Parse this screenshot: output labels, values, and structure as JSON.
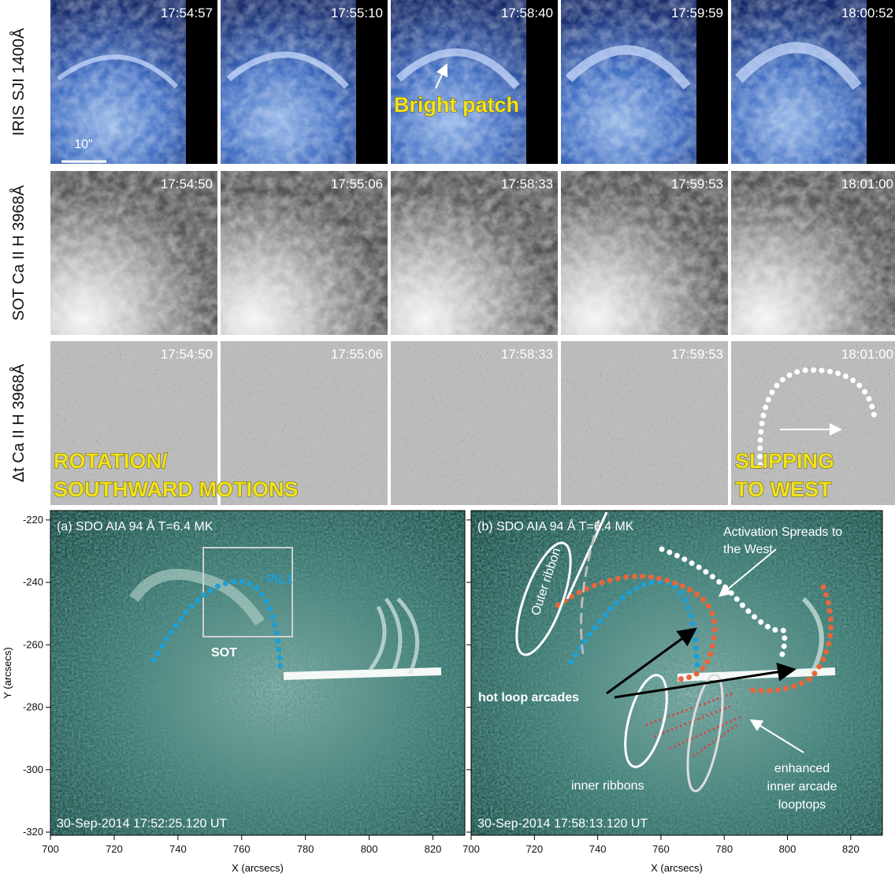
{
  "rows": [
    {
      "label": "IRIS SJI 1400Å",
      "times": [
        "17:54:57",
        "17:55:10",
        "17:58:40",
        "17:59:59",
        "18:00:52"
      ]
    },
    {
      "label": "SOT Ca II H 3968Å",
      "times": [
        "17:54:50",
        "17:55:06",
        "17:58:33",
        "17:59:53",
        "18:01:00"
      ]
    },
    {
      "label": "Δt Ca II H 3968Å",
      "times": [
        "17:54:50",
        "17:55:06",
        "17:58:33",
        "17:59:53",
        "18:01:00"
      ]
    }
  ],
  "annotations": {
    "scale_bar": "10\"",
    "bright_patch": "Bright patch",
    "rotation": "ROTATION/",
    "southward": "SOUTHWARD MOTIONS",
    "slipping": "SLIPPING",
    "to_west": "TO WEST"
  },
  "panels": [
    {
      "title": "(a) SDO AIA 94 Å  T=6.4 MK",
      "timestamp": "30-Sep-2014 17:52:25.120 UT",
      "labels": [
        "PIL1",
        "SOT"
      ]
    },
    {
      "title": "(b) SDO AIA 94 Å  T=6.4 MK",
      "timestamp": "30-Sep-2014 17:58:13.120 UT",
      "labels": [
        "Outer ribbon",
        "Activation Spreads to",
        "the West",
        "hot loop arcades",
        "inner ribbons",
        "enhanced",
        "inner arcade",
        "looptops"
      ]
    }
  ],
  "axes": {
    "xlabel": "X (arcsecs)",
    "ylabel": "Y (arcsecs)",
    "xlim": [
      700,
      830
    ],
    "ylim": [
      -321,
      -217
    ],
    "xticks": [
      700,
      720,
      740,
      760,
      780,
      800,
      820
    ],
    "yticks": [
      -220,
      -240,
      -260,
      -280,
      -300,
      -320
    ]
  }
}
